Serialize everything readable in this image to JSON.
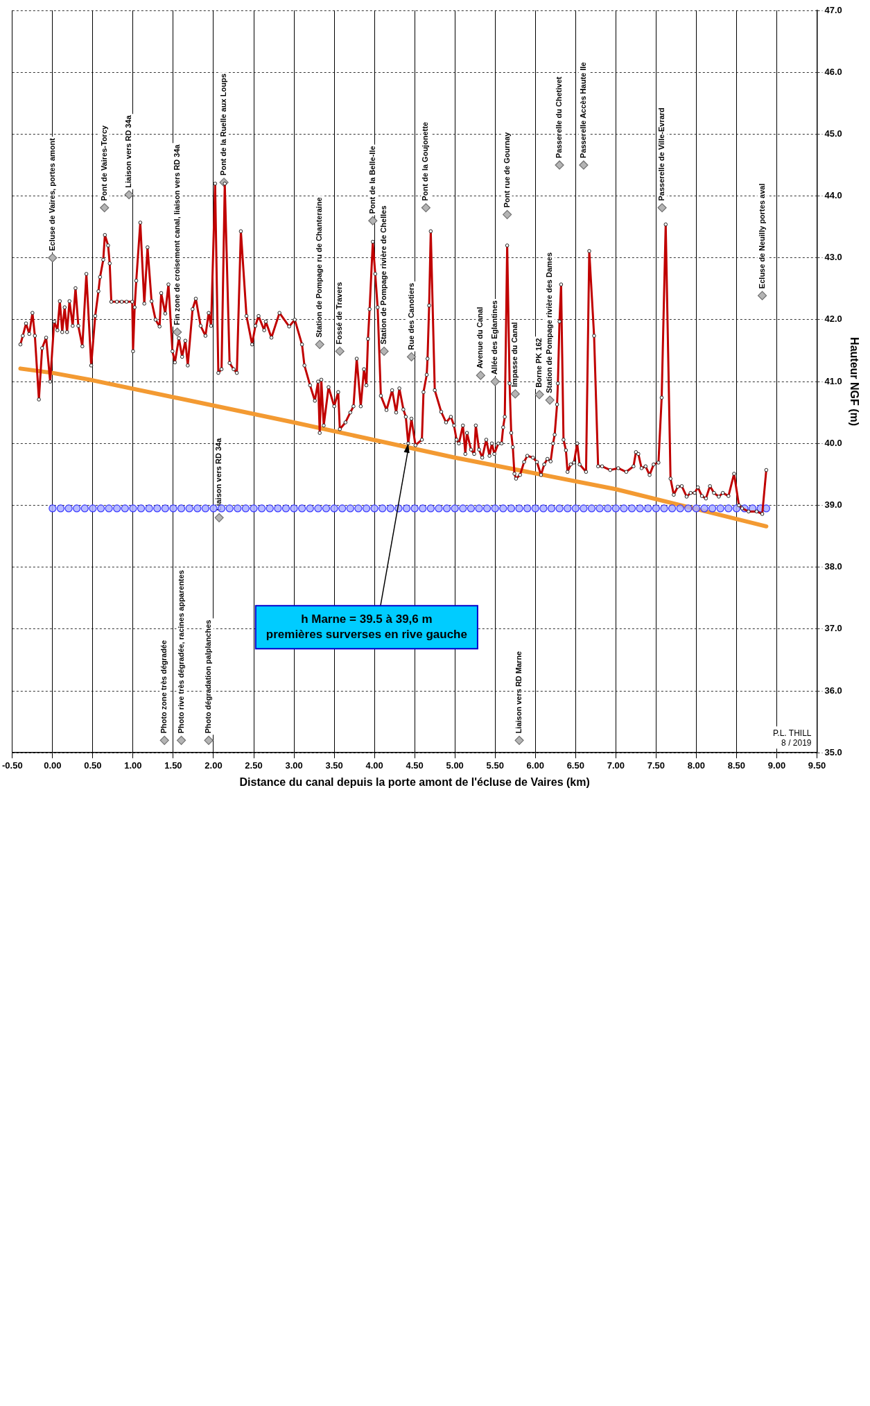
{
  "chart_data": {
    "type": "line",
    "xlabel": "Distance du canal depuis la porte amont de l'écluse de Vaires (km)",
    "ylabel": "Hauteur NGF (m)",
    "xlim": [
      -0.5,
      9.5
    ],
    "xticks": [
      {
        "value": -0.5,
        "label": "-0.50"
      },
      {
        "value": 0,
        "label": "0.00"
      },
      {
        "value": 0.5,
        "label": "0.50"
      },
      {
        "value": 1,
        "label": "1.00"
      },
      {
        "value": 1.5,
        "label": "1.50"
      },
      {
        "value": 2,
        "label": "2.00"
      },
      {
        "value": 2.5,
        "label": "2.50"
      },
      {
        "value": 3,
        "label": "3.00"
      },
      {
        "value": 3.5,
        "label": "3.50"
      },
      {
        "value": 4,
        "label": "4.00"
      },
      {
        "value": 4.5,
        "label": "4.50"
      },
      {
        "value": 5,
        "label": "5.00"
      },
      {
        "value": 5.5,
        "label": "5.50"
      },
      {
        "value": 6,
        "label": "6.00"
      },
      {
        "value": 6.5,
        "label": "6.50"
      },
      {
        "value": 7,
        "label": "7.00"
      },
      {
        "value": 7.5,
        "label": "7.50"
      },
      {
        "value": 8,
        "label": "8.00"
      },
      {
        "value": 8.5,
        "label": "8.50"
      },
      {
        "value": 9,
        "label": "9.00"
      },
      {
        "value": 9.5,
        "label": "9.50"
      }
    ],
    "ylim": [
      35,
      47
    ],
    "yticks": [
      {
        "value": 35,
        "label": "35.0"
      },
      {
        "value": 36,
        "label": "36.0"
      },
      {
        "value": 37,
        "label": "37.0"
      },
      {
        "value": 38,
        "label": "38.0"
      },
      {
        "value": 39,
        "label": "39.0"
      },
      {
        "value": 40,
        "label": "40.0"
      },
      {
        "value": 41,
        "label": "41.0"
      },
      {
        "value": 42,
        "label": "42.0"
      },
      {
        "value": 43,
        "label": "43.0"
      },
      {
        "value": 44,
        "label": "44.0"
      },
      {
        "value": 45,
        "label": "45.0"
      },
      {
        "value": 46,
        "label": "46.0"
      },
      {
        "value": 47,
        "label": "47.0"
      }
    ],
    "grid": true,
    "series": [
      {
        "color": "#f39a32",
        "marker": "none",
        "x": [
          -0.4,
          0,
          0.5,
          3,
          5,
          7,
          8.87
        ],
        "values": [
          41.21,
          41.14,
          41.02,
          40.34,
          39.77,
          39.26,
          38.66
        ]
      },
      {
        "type": "scatter",
        "color": "#3a3aff",
        "marker": "circle",
        "x": [
          0,
          0.1,
          0.2,
          0.3,
          0.4,
          0.5,
          0.6,
          0.7,
          0.8,
          0.9,
          1,
          1.1,
          1.2,
          1.3,
          1.4,
          1.5,
          1.6,
          1.7,
          1.8,
          1.9,
          2,
          2.1,
          2.2,
          2.3,
          2.4,
          2.5,
          2.6,
          2.7,
          2.8,
          2.9,
          3,
          3.1,
          3.2,
          3.3,
          3.4,
          3.5,
          3.6,
          3.7,
          3.8,
          3.9,
          4,
          4.1,
          4.2,
          4.3,
          4.4,
          4.5,
          4.6,
          4.7,
          4.8,
          4.9,
          5,
          5.1,
          5.2,
          5.3,
          5.4,
          5.5,
          5.6,
          5.7,
          5.8,
          5.9,
          6,
          6.1,
          6.2,
          6.3,
          6.4,
          6.5,
          6.6,
          6.7,
          6.8,
          6.9,
          7,
          7.1,
          7.2,
          7.3,
          7.4,
          7.5,
          7.6,
          7.7,
          7.8,
          7.9,
          8,
          8.1,
          8.2,
          8.3,
          8.4,
          8.5,
          8.6,
          8.7,
          8.8,
          8.87
        ],
        "values": [
          38.95,
          38.95,
          38.95,
          38.95,
          38.95,
          38.95,
          38.95,
          38.95,
          38.95,
          38.95,
          38.95,
          38.95,
          38.95,
          38.95,
          38.95,
          38.95,
          38.95,
          38.95,
          38.95,
          38.95,
          38.95,
          38.95,
          38.95,
          38.95,
          38.95,
          38.95,
          38.95,
          38.95,
          38.95,
          38.95,
          38.95,
          38.95,
          38.95,
          38.95,
          38.95,
          38.95,
          38.95,
          38.95,
          38.95,
          38.95,
          38.95,
          38.95,
          38.95,
          38.95,
          38.95,
          38.95,
          38.95,
          38.95,
          38.95,
          38.95,
          38.95,
          38.95,
          38.95,
          38.95,
          38.95,
          38.95,
          38.95,
          38.95,
          38.95,
          38.95,
          38.95,
          38.95,
          38.95,
          38.95,
          38.95,
          38.95,
          38.95,
          38.95,
          38.95,
          38.95,
          38.95,
          38.95,
          38.95,
          38.95,
          38.95,
          38.95,
          38.95,
          38.95,
          38.95,
          38.95,
          38.95,
          38.95,
          38.95,
          38.95,
          38.95,
          38.95,
          38.95,
          38.95,
          38.95,
          38.95
        ]
      },
      {
        "color": "#c00000",
        "marker": "circle",
        "x": [
          -0.4,
          -0.37,
          -0.33,
          -0.29,
          -0.25,
          -0.22,
          -0.17,
          -0.13,
          -0.08,
          -0.03,
          0.02,
          0.06,
          0.09,
          0.12,
          0.15,
          0.18,
          0.21,
          0.25,
          0.285,
          0.32,
          0.37,
          0.42,
          0.48,
          0.53,
          0.57,
          0.59,
          0.63,
          0.65,
          0.69,
          0.71,
          0.73,
          0.8,
          0.86,
          0.92,
          0.99,
          1,
          1.02,
          1.04,
          1.09,
          1.14,
          1.18,
          1.23,
          1.28,
          1.33,
          1.35,
          1.4,
          1.44,
          1.49,
          1.52,
          1.57,
          1.61,
          1.65,
          1.68,
          1.74,
          1.78,
          1.84,
          1.9,
          1.94,
          1.97,
          2.02,
          2.06,
          2.1,
          2.14,
          2.2,
          2.25,
          2.29,
          2.34,
          2.41,
          2.48,
          2.52,
          2.56,
          2.63,
          2.65,
          2.72,
          2.82,
          2.94,
          3.01,
          3.1,
          3.13,
          3.2,
          3.26,
          3.3,
          3.32,
          3.34,
          3.37,
          3.43,
          3.5,
          3.55,
          3.57,
          3.64,
          3.7,
          3.74,
          3.78,
          3.83,
          3.87,
          3.9,
          3.92,
          3.94,
          3.98,
          4.01,
          4.04,
          4.08,
          4.15,
          4.22,
          4.27,
          4.31,
          4.36,
          4.39,
          4.42,
          4.46,
          4.51,
          4.59,
          4.61,
          4.65,
          4.66,
          4.68,
          4.7,
          4.75,
          4.83,
          4.89,
          4.95,
          4.99,
          5.02,
          5.05,
          5.1,
          5.13,
          5.15,
          5.2,
          5.24,
          5.26,
          5.3,
          5.34,
          5.39,
          5.43,
          5.46,
          5.49,
          5.54,
          5.58,
          5.6,
          5.62,
          5.65,
          5.68,
          5.7,
          5.72,
          5.74,
          5.76,
          5.81,
          5.86,
          5.9,
          5.97,
          6.02,
          6.07,
          6.11,
          6.15,
          6.19,
          6.22,
          6.24,
          6.27,
          6.28,
          6.3,
          6.32,
          6.35,
          6.38,
          6.4,
          6.44,
          6.48,
          6.52,
          6.55,
          6.63,
          6.67,
          6.73,
          6.78,
          6.83,
          6.93,
          7.03,
          7.13,
          7.22,
          7.25,
          7.28,
          7.32,
          7.37,
          7.42,
          7.47,
          7.53,
          7.57,
          7.62,
          7.68,
          7.72,
          7.77,
          7.82,
          7.88,
          7.93,
          7.98,
          8.02,
          8.07,
          8.12,
          8.17,
          8.22,
          8.28,
          8.33,
          8.4,
          8.47,
          8.53,
          8.57,
          8.65,
          8.75,
          8.82,
          8.87
        ],
        "values": [
          41.6,
          41.74,
          41.94,
          41.77,
          42.11,
          41.74,
          40.71,
          41.54,
          41.71,
          41.0,
          41.97,
          41.83,
          42.3,
          41.8,
          42.2,
          41.8,
          42.3,
          41.9,
          42.51,
          41.9,
          41.57,
          42.74,
          41.26,
          42.06,
          42.46,
          42.69,
          42.97,
          43.37,
          43.2,
          42.91,
          42.29,
          42.29,
          42.29,
          42.29,
          42.29,
          41.49,
          42.2,
          42.63,
          43.57,
          42.26,
          43.17,
          42.3,
          42.0,
          41.89,
          42.43,
          42.1,
          42.57,
          41.49,
          41.31,
          41.7,
          41.4,
          41.66,
          41.26,
          42.17,
          42.34,
          41.9,
          41.74,
          42.11,
          41.9,
          44.2,
          41.14,
          41.2,
          44.2,
          41.3,
          41.2,
          41.14,
          43.43,
          42.06,
          41.6,
          41.9,
          42.06,
          41.83,
          41.97,
          41.71,
          42.11,
          41.89,
          42.0,
          41.6,
          41.26,
          40.94,
          40.69,
          41.0,
          40.17,
          41.03,
          40.29,
          40.91,
          40.6,
          40.83,
          40.23,
          40.34,
          40.5,
          40.6,
          41.37,
          40.6,
          41.2,
          40.94,
          41.69,
          42.17,
          43.26,
          42.74,
          42.2,
          40.77,
          40.54,
          40.86,
          40.5,
          40.89,
          40.55,
          40.43,
          40.0,
          40.4,
          39.97,
          40.06,
          40.83,
          41.11,
          41.37,
          42.23,
          43.43,
          40.86,
          40.51,
          40.34,
          40.43,
          40.29,
          40.06,
          40.0,
          40.29,
          39.83,
          40.17,
          39.9,
          39.83,
          40.29,
          39.9,
          39.77,
          40.06,
          39.8,
          40.0,
          39.83,
          40.0,
          40.0,
          40.26,
          40.43,
          43.2,
          40.97,
          40.17,
          39.94,
          39.51,
          39.43,
          39.49,
          39.7,
          39.8,
          39.77,
          39.7,
          39.49,
          39.66,
          39.75,
          39.71,
          40.0,
          40.14,
          40.63,
          40.97,
          41.97,
          42.57,
          40.06,
          39.89,
          39.54,
          39.66,
          39.69,
          40.0,
          39.66,
          39.54,
          43.11,
          41.74,
          39.63,
          39.63,
          39.57,
          39.6,
          39.54,
          39.63,
          39.86,
          39.83,
          39.6,
          39.63,
          39.49,
          39.66,
          39.69,
          40.74,
          43.54,
          39.43,
          39.17,
          39.3,
          39.31,
          39.14,
          39.2,
          39.2,
          39.29,
          39.15,
          39.11,
          39.31,
          39.2,
          39.14,
          39.2,
          39.15,
          39.51,
          39.0,
          38.95,
          38.9,
          38.9,
          38.86,
          39.57
        ]
      },
      {
        "type": "scatter",
        "color": "#b4b4b4",
        "marker": "diamond",
        "x": [
          0,
          0.645,
          0.95,
          1.39,
          1.55,
          1.6,
          1.94,
          2.07,
          2.13,
          3.32,
          3.57,
          3.98,
          4.12,
          4.46,
          4.64,
          5.32,
          5.5,
          5.65,
          5.75,
          5.8,
          6.05,
          6.18,
          6.3,
          6.6,
          7.575,
          8.82
        ],
        "values": [
          43.0,
          43.81,
          44.02,
          35.2,
          41.8,
          35.2,
          35.2,
          38.8,
          44.22,
          41.6,
          41.49,
          43.6,
          41.49,
          41.4,
          43.81,
          41.1,
          41.0,
          43.7,
          40.8,
          35.2,
          40.79,
          40.7,
          44.5,
          44.5,
          43.81,
          42.39
        ],
        "value_labels": [
          "Ecluse de Vaires, portes amont",
          "Pont de Vaires-Torcy",
          "Liaison vers RD 34a",
          "Photo zone très dégradée",
          "Fin zone de croisement canal, liaison vers RD 34a",
          "Photo rive très dégradée, racines apparentes",
          "Photo dégradation palplanches",
          "Liaison vers RD 34a",
          "Pont de la Ruelle aux Loups",
          "Station de Pompage ru de Chanteraine",
          "Fossé de Travers",
          "Pont de la Belle-Ile",
          "Station de Pompage rivière de Chelles",
          "Rue des Canotiers",
          "Pont de la Goujonette",
          "Avenue du Canal",
          "Allée des Eglantines",
          "Pont rue de Gournay",
          "Impasse du Canal",
          "Liaison vers RD Marne",
          "Borne PK 162",
          "Station de Pompage rivière des Dames",
          "Passerelle du Chetivet",
          "Passerelle Accès Haute Ile",
          "Passerelle de Ville-Evrard",
          "Ecluse de Neuilly portes aval"
        ]
      }
    ],
    "annotations": [
      {
        "text": "h Marne = 39.5 à 39,6 m\npremières surverses en rive gauche",
        "x": 4.42,
        "y": 40.0
      },
      "P.L. THILL\n8 / 2019"
    ]
  }
}
